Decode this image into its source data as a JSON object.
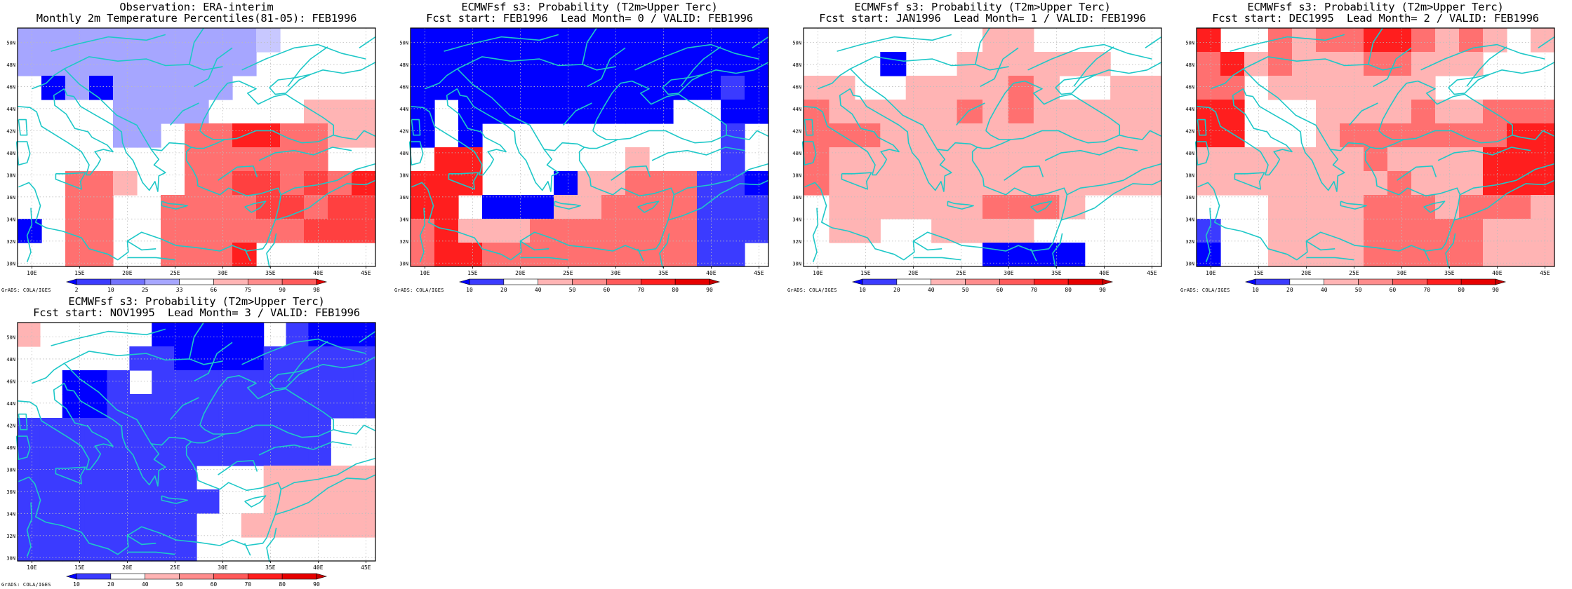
{
  "colors": {
    "coast": "#1fc8c8",
    "blue_scale": [
      "#0000ff",
      "#3b3bff",
      "#7272ff",
      "#a6a6ff"
    ],
    "red_scale": [
      "#ffb4b4",
      "#ff8c8c",
      "#ff5a5a",
      "#ff1e1e",
      "#e60000"
    ]
  },
  "grid": {
    "lon_labels": [
      "10E",
      "15E",
      "20E",
      "25E",
      "30E",
      "35E",
      "40E",
      "45E"
    ],
    "lat_labels": [
      "50N",
      "48N",
      "46N",
      "44N",
      "42N",
      "40N",
      "38N",
      "36N",
      "34N",
      "32N",
      "30N"
    ]
  },
  "panels": [
    {
      "id": "obs",
      "title1": "Observation: ERA-interim",
      "title2": "Monthly 2m Temperature Percentiles(81-05): FEB1996",
      "credit": "GrADS: COLA/IGES",
      "colorbar_labels": [
        "2",
        "10",
        "25",
        "33",
        "66",
        "75",
        "90",
        "98"
      ],
      "colorbar_colors": [
        "#0000ff",
        "#3b3bff",
        "#7272ff",
        "#a6a6ff",
        "#ffffff",
        "#ffb4b4",
        "#ff8c8c",
        "#ff5a5a",
        "#e60000"
      ],
      "grid_rows": [
        "aaaaaaaaaaw....",
        "aaaaaaaaaa.....",
        ".BaBaaaaa......",
        "....aaaa....rrr",
        "....aa.mmRRmmrr",
        ".......mmmmmm..",
        "..mmr..mmMMmMmR",
        "..mm..mmmmMMmMM",
        "B.mm..mmmmmmMMM",
        "..mm..mmmR....."
      ]
    },
    {
      "id": "lead0",
      "title1": "ECMWFsf s3: Probability (T2m>Upper Terc)",
      "title2": "Fcst start: FEB1996  Lead Month= 0 / VALID: FEB1996",
      "credit": "GrADS: COLA/IGES",
      "colorbar_labels": [
        "10",
        "20",
        "40",
        "50",
        "60",
        "70",
        "80",
        "90"
      ],
      "colorbar_colors": [
        "#0000ff",
        "#3b3bff",
        "#ffffff",
        "#ffb4b4",
        "#ff8c8c",
        "#ff5a5a",
        "#ff1e1e",
        "#e60000",
        "#c80000"
      ],
      "grid_rows": [
        "BBBBBBBBBBBBBBB",
        "BBBBBBBBBBBBBBB",
        "BBBBBBBBBBBBBbB",
        "B.BBBBBBBBB..BB",
        "B.B..........b.",
        ".RR......r...b.",
        "RRR...BrrmmmbbB",
        "RR.BBBrrmmmmbbb",
        "mRrrrmmmmmmmbbb",
        "mRRmmmmmmmmmbb."
      ]
    },
    {
      "id": "lead1",
      "title1": "ECMWFsf s3: Probability (T2m>Upper Terc)",
      "title2": "Fcst start: JAN1996  Lead Month= 1 / VALID: FEB1996",
      "credit": "GrADS: COLA/IGES",
      "colorbar_labels": [
        "10",
        "20",
        "40",
        "50",
        "60",
        "70",
        "80",
        "90"
      ],
      "colorbar_colors": [
        "#0000ff",
        "#3b3bff",
        "#ffffff",
        "#ffb4b4",
        "#ff8c8c",
        "#ff5a5a",
        "#ff1e1e",
        "#e60000",
        "#c80000"
      ],
      "grid_rows": [
        ".......rr.....",
        "...B..rrrrrr..",
        "rr..rrrrmr..rr",
        "mrrrrrmrmrrrrr",
        "mmmrrrrrrrrrrr",
        "mrrrrrrrrrrrrr",
        "mrrrrrrrrrrrrr",
        ".rrrrrrmmmr...",
        ".rr..rrrr.....",
        ".......BBBB..."
      ]
    },
    {
      "id": "lead2",
      "title1": "ECMWFsf s3: Probability (T2m>Upper Terc)",
      "title2": "Fcst start: DEC1995  Lead Month= 2 / VALID: FEB1996",
      "credit": "GrADS: COLA/IGES",
      "colorbar_labels": [
        "10",
        "20",
        "40",
        "50",
        "60",
        "70",
        "80",
        "90"
      ],
      "colorbar_colors": [
        "#0000ff",
        "#3b3bff",
        "#ffffff",
        "#ffb4b4",
        "#ff8c8c",
        "#ff5a5a",
        "#ff1e1e",
        "#e60000",
        "#c80000"
      ],
      "grid_rows": [
        "R..mrmmRRmrmr.r",
        "mRrmrrrmmrrr...",
        "mm.rrrrrrr.....",
        "RR...rrrrmrrmmm",
        "RR...rmmmmmmmRR",
        "rrrrrrrmrrrrRRR",
        "rrrrrrrrmrrrRRR",
        "...rrrrmmmrmmmr",
        "b..rrrrmmmmmrrr",
        "B..rrrrmmmmmrrr"
      ]
    },
    {
      "id": "lead3",
      "title1": "ECMWFsf s3: Probability (T2m>Upper Terc)",
      "title2": "Fcst start: NOV1995  Lead Month= 3 / VALID: FEB1996",
      "credit": "GrADS: COLA/IGES",
      "colorbar_labels": [
        "10",
        "20",
        "40",
        "50",
        "60",
        "70",
        "80",
        "90"
      ],
      "colorbar_colors": [
        "#0000ff",
        "#3b3bff",
        "#ffffff",
        "#ffb4b4",
        "#ff8c8c",
        "#ff5a5a",
        "#ff1e1e",
        "#e60000",
        "#c80000"
      ],
      "grid_rows": [
        "r.....BBBBB.bBBB",
        ".....bbBBBBbbbbb",
        "..BBb.bbbbbbbbbb",
        "..BBbbbbbbbbbbbb",
        "bbbbbbbbbbbbbb..",
        "bbbbbbbbbbbbbb..",
        "bbbbbbbb...rrrrr",
        "bbbbbbbbb..rrrrr",
        "bbbbbbbb..rrrrrr",
        "bbbbbbbb........"
      ]
    }
  ]
}
